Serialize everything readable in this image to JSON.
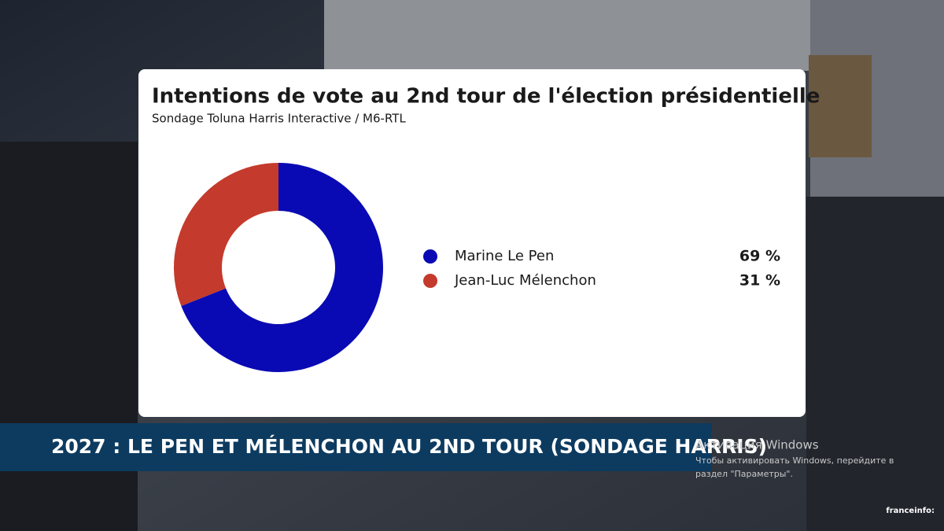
{
  "chart_data": {
    "type": "donut",
    "title": "Intentions de vote au 2nd tour de l'élection présidentielle",
    "subtitle": "Sondage Toluna Harris Interactive / M6-RTL",
    "categories": [
      "Marine Le Pen",
      "Jean-Luc Mélenchon"
    ],
    "values": [
      69,
      31
    ],
    "value_labels": [
      "69 %",
      "31 %"
    ],
    "colors": [
      "#0a0ab4",
      "#c43a2c"
    ]
  },
  "banner": "2027 : LE PEN ET MÉLENCHON AU 2ND TOUR (SONDAGE HARRIS)",
  "windows_notice": {
    "title": "Активация Windows",
    "line1": "Чтобы активировать Windows, перейдите в",
    "line2": "раздел \"Параметры\"."
  },
  "channel": "franceinfo:"
}
